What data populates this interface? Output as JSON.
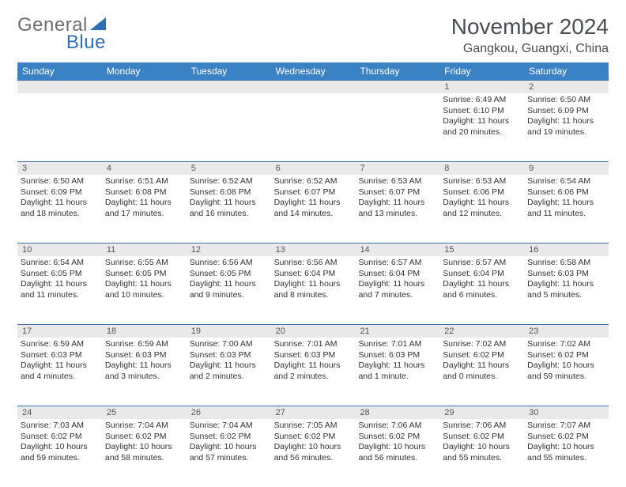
{
  "brand": {
    "part1": "General",
    "part2": "Blue"
  },
  "title": "November 2024",
  "location": "Gangkou, Guangxi, China",
  "colors": {
    "header_bg": "#3b82c4",
    "header_text": "#ffffff",
    "divider": "#3b6fa8",
    "date_band": "#e9e9e9",
    "text": "#333333",
    "brand_gray": "#6a6e73",
    "brand_blue": "#2f6fb5"
  },
  "day_names": [
    "Sunday",
    "Monday",
    "Tuesday",
    "Wednesday",
    "Thursday",
    "Friday",
    "Saturday"
  ],
  "weeks": [
    {
      "dates": [
        "",
        "",
        "",
        "",
        "",
        "1",
        "2"
      ],
      "cells": [
        null,
        null,
        null,
        null,
        null,
        {
          "sunrise": "Sunrise: 6:49 AM",
          "sunset": "Sunset: 6:10 PM",
          "day1": "Daylight: 11 hours",
          "day2": "and 20 minutes."
        },
        {
          "sunrise": "Sunrise: 6:50 AM",
          "sunset": "Sunset: 6:09 PM",
          "day1": "Daylight: 11 hours",
          "day2": "and 19 minutes."
        }
      ]
    },
    {
      "dates": [
        "3",
        "4",
        "5",
        "6",
        "7",
        "8",
        "9"
      ],
      "cells": [
        {
          "sunrise": "Sunrise: 6:50 AM",
          "sunset": "Sunset: 6:09 PM",
          "day1": "Daylight: 11 hours",
          "day2": "and 18 minutes."
        },
        {
          "sunrise": "Sunrise: 6:51 AM",
          "sunset": "Sunset: 6:08 PM",
          "day1": "Daylight: 11 hours",
          "day2": "and 17 minutes."
        },
        {
          "sunrise": "Sunrise: 6:52 AM",
          "sunset": "Sunset: 6:08 PM",
          "day1": "Daylight: 11 hours",
          "day2": "and 16 minutes."
        },
        {
          "sunrise": "Sunrise: 6:52 AM",
          "sunset": "Sunset: 6:07 PM",
          "day1": "Daylight: 11 hours",
          "day2": "and 14 minutes."
        },
        {
          "sunrise": "Sunrise: 6:53 AM",
          "sunset": "Sunset: 6:07 PM",
          "day1": "Daylight: 11 hours",
          "day2": "and 13 minutes."
        },
        {
          "sunrise": "Sunrise: 6:53 AM",
          "sunset": "Sunset: 6:06 PM",
          "day1": "Daylight: 11 hours",
          "day2": "and 12 minutes."
        },
        {
          "sunrise": "Sunrise: 6:54 AM",
          "sunset": "Sunset: 6:06 PM",
          "day1": "Daylight: 11 hours",
          "day2": "and 11 minutes."
        }
      ]
    },
    {
      "dates": [
        "10",
        "11",
        "12",
        "13",
        "14",
        "15",
        "16"
      ],
      "cells": [
        {
          "sunrise": "Sunrise: 6:54 AM",
          "sunset": "Sunset: 6:05 PM",
          "day1": "Daylight: 11 hours",
          "day2": "and 11 minutes."
        },
        {
          "sunrise": "Sunrise: 6:55 AM",
          "sunset": "Sunset: 6:05 PM",
          "day1": "Daylight: 11 hours",
          "day2": "and 10 minutes."
        },
        {
          "sunrise": "Sunrise: 6:56 AM",
          "sunset": "Sunset: 6:05 PM",
          "day1": "Daylight: 11 hours",
          "day2": "and 9 minutes."
        },
        {
          "sunrise": "Sunrise: 6:56 AM",
          "sunset": "Sunset: 6:04 PM",
          "day1": "Daylight: 11 hours",
          "day2": "and 8 minutes."
        },
        {
          "sunrise": "Sunrise: 6:57 AM",
          "sunset": "Sunset: 6:04 PM",
          "day1": "Daylight: 11 hours",
          "day2": "and 7 minutes."
        },
        {
          "sunrise": "Sunrise: 6:57 AM",
          "sunset": "Sunset: 6:04 PM",
          "day1": "Daylight: 11 hours",
          "day2": "and 6 minutes."
        },
        {
          "sunrise": "Sunrise: 6:58 AM",
          "sunset": "Sunset: 6:03 PM",
          "day1": "Daylight: 11 hours",
          "day2": "and 5 minutes."
        }
      ]
    },
    {
      "dates": [
        "17",
        "18",
        "19",
        "20",
        "21",
        "22",
        "23"
      ],
      "cells": [
        {
          "sunrise": "Sunrise: 6:59 AM",
          "sunset": "Sunset: 6:03 PM",
          "day1": "Daylight: 11 hours",
          "day2": "and 4 minutes."
        },
        {
          "sunrise": "Sunrise: 6:59 AM",
          "sunset": "Sunset: 6:03 PM",
          "day1": "Daylight: 11 hours",
          "day2": "and 3 minutes."
        },
        {
          "sunrise": "Sunrise: 7:00 AM",
          "sunset": "Sunset: 6:03 PM",
          "day1": "Daylight: 11 hours",
          "day2": "and 2 minutes."
        },
        {
          "sunrise": "Sunrise: 7:01 AM",
          "sunset": "Sunset: 6:03 PM",
          "day1": "Daylight: 11 hours",
          "day2": "and 2 minutes."
        },
        {
          "sunrise": "Sunrise: 7:01 AM",
          "sunset": "Sunset: 6:03 PM",
          "day1": "Daylight: 11 hours",
          "day2": "and 1 minute."
        },
        {
          "sunrise": "Sunrise: 7:02 AM",
          "sunset": "Sunset: 6:02 PM",
          "day1": "Daylight: 11 hours",
          "day2": "and 0 minutes."
        },
        {
          "sunrise": "Sunrise: 7:02 AM",
          "sunset": "Sunset: 6:02 PM",
          "day1": "Daylight: 10 hours",
          "day2": "and 59 minutes."
        }
      ]
    },
    {
      "dates": [
        "24",
        "25",
        "26",
        "27",
        "28",
        "29",
        "30"
      ],
      "cells": [
        {
          "sunrise": "Sunrise: 7:03 AM",
          "sunset": "Sunset: 6:02 PM",
          "day1": "Daylight: 10 hours",
          "day2": "and 59 minutes."
        },
        {
          "sunrise": "Sunrise: 7:04 AM",
          "sunset": "Sunset: 6:02 PM",
          "day1": "Daylight: 10 hours",
          "day2": "and 58 minutes."
        },
        {
          "sunrise": "Sunrise: 7:04 AM",
          "sunset": "Sunset: 6:02 PM",
          "day1": "Daylight: 10 hours",
          "day2": "and 57 minutes."
        },
        {
          "sunrise": "Sunrise: 7:05 AM",
          "sunset": "Sunset: 6:02 PM",
          "day1": "Daylight: 10 hours",
          "day2": "and 56 minutes."
        },
        {
          "sunrise": "Sunrise: 7:06 AM",
          "sunset": "Sunset: 6:02 PM",
          "day1": "Daylight: 10 hours",
          "day2": "and 56 minutes."
        },
        {
          "sunrise": "Sunrise: 7:06 AM",
          "sunset": "Sunset: 6:02 PM",
          "day1": "Daylight: 10 hours",
          "day2": "and 55 minutes."
        },
        {
          "sunrise": "Sunrise: 7:07 AM",
          "sunset": "Sunset: 6:02 PM",
          "day1": "Daylight: 10 hours",
          "day2": "and 55 minutes."
        }
      ]
    }
  ]
}
